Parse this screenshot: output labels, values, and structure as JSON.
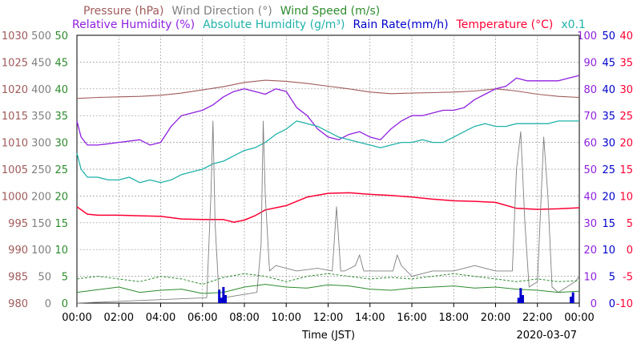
{
  "chart_data": {
    "type": "line",
    "legend": {
      "row1": [
        {
          "text": "Pressure (hPa)",
          "color": "#a05a5a"
        },
        {
          "text": "Wind Direction (°)",
          "color": "#7f7f7f"
        },
        {
          "text": "Wind Speed (m/s)",
          "color": "#2e8b2e"
        }
      ],
      "row2": [
        {
          "text": "Relative Humidity (%)",
          "color": "#8f1fdf"
        },
        {
          "text": "Absolute Humidity (g/m³)",
          "color": "#20b2aa"
        },
        {
          "text": "Rain Rate(mm/h)",
          "color": "#0000cc"
        },
        {
          "text": "Temperature (°C)",
          "color": "#ff0033"
        },
        {
          "text": "x0.1",
          "color": "#20b2aa"
        }
      ]
    },
    "x_ticks": [
      "00:00",
      "02:00",
      "04:00",
      "06:00",
      "08:00",
      "10:00",
      "12:00",
      "14:00",
      "16:00",
      "18:00",
      "20:00",
      "22:00",
      "00:00"
    ],
    "xlabel": "Time (JST)",
    "date": "2020-03-07",
    "axes": {
      "pressure": {
        "ticks": [
          "1030",
          "1025",
          "1020",
          "1015",
          "1010",
          "1005",
          "1000",
          "995",
          "990",
          "985",
          "980"
        ],
        "ylim": [
          980,
          1030
        ],
        "color": "#a05a5a"
      },
      "wind_direction": {
        "ticks": [
          "500",
          "450",
          "400",
          "350",
          "300",
          "250",
          "200",
          "150",
          "100",
          "50",
          "0"
        ],
        "ylim": [
          0,
          500
        ],
        "color": "#7f7f7f"
      },
      "wind_speed": {
        "ticks": [
          "50",
          "45",
          "40",
          "35",
          "30",
          "25",
          "20",
          "15",
          "10",
          "5",
          "0"
        ],
        "ylim": [
          0,
          50
        ],
        "color": "#2e8b2e"
      },
      "relative_humidity": {
        "ticks": [
          "100",
          "90",
          "80",
          "70",
          "60",
          "50",
          "40",
          "30",
          "20",
          "10",
          "0"
        ],
        "ylim": [
          0,
          100
        ],
        "color": "#8f1fdf"
      },
      "rain_rate": {
        "ticks": [
          "50",
          "45",
          "40",
          "35",
          "30",
          "25",
          "20",
          "15",
          "10",
          "5",
          "0"
        ],
        "ylim": [
          0,
          50
        ],
        "color": "#0000cc"
      },
      "temperature": {
        "ticks": [
          "40",
          "35",
          "30",
          "25",
          "20",
          "15",
          "10",
          "5",
          "0",
          "-5",
          "-10"
        ],
        "ylim": [
          -10,
          40
        ],
        "color": "#ff0033"
      }
    },
    "series": [
      {
        "name": "Pressure (hPa)",
        "color": "#a05a5a",
        "x": [
          0,
          1,
          2,
          3,
          4,
          5,
          6,
          7,
          8,
          9,
          10,
          11,
          12,
          13,
          14,
          15,
          16,
          17,
          18,
          19,
          20,
          21,
          22,
          23,
          24
        ],
        "y": [
          1018.2,
          1018.4,
          1018.5,
          1018.6,
          1018.8,
          1019.2,
          1019.8,
          1020.4,
          1021.2,
          1021.6,
          1021.4,
          1021,
          1020.5,
          1020,
          1019.4,
          1019.1,
          1019.2,
          1019.3,
          1019.4,
          1019.6,
          1020,
          1019.6,
          1019,
          1018.6,
          1018.4
        ]
      },
      {
        "name": "Relative Humidity (%)",
        "color": "#8f1fdf",
        "x": [
          0,
          0.2,
          0.5,
          1,
          2,
          3,
          3.5,
          4,
          4.5,
          5,
          5.5,
          6,
          6.5,
          7,
          7.5,
          8,
          8.5,
          9,
          9.5,
          10,
          10.5,
          11,
          11.5,
          12,
          12.5,
          13,
          13.5,
          14,
          14.5,
          15,
          15.5,
          16,
          16.5,
          17,
          17.5,
          18,
          18.5,
          19,
          19.5,
          20,
          20.5,
          21,
          21.5,
          22,
          22.5,
          23,
          23.5,
          24
        ],
        "y": [
          68,
          62,
          59,
          59,
          60,
          61,
          59,
          60,
          66,
          70,
          71,
          72,
          74,
          77,
          79,
          80,
          79,
          78,
          80,
          79,
          73,
          70,
          65,
          62,
          61,
          63,
          64,
          62,
          61,
          65,
          68,
          70,
          70,
          71,
          72,
          72,
          73,
          76,
          78,
          80,
          81,
          84,
          83,
          83,
          83,
          83,
          84,
          85
        ]
      },
      {
        "name": "Absolute Humidity (g/m³)",
        "color": "#20b2aa",
        "x": [
          0,
          0.2,
          0.5,
          1,
          1.5,
          2,
          2.5,
          3,
          3.5,
          4,
          4.5,
          5,
          5.5,
          6,
          6.5,
          7,
          7.5,
          8,
          8.5,
          9,
          9.5,
          10,
          10.5,
          11,
          11.5,
          12,
          12.5,
          13,
          13.5,
          14,
          14.5,
          15,
          15.5,
          16,
          16.5,
          17,
          17.5,
          18,
          18.5,
          19,
          19.5,
          20,
          20.5,
          21,
          21.5,
          22,
          22.5,
          23,
          23.5,
          24
        ],
        "y": [
          5.6,
          5.0,
          4.7,
          4.7,
          4.6,
          4.6,
          4.7,
          4.5,
          4.6,
          4.5,
          4.6,
          4.8,
          4.9,
          5.0,
          5.2,
          5.3,
          5.5,
          5.7,
          5.8,
          6.0,
          6.3,
          6.5,
          6.8,
          6.7,
          6.6,
          6.4,
          6.2,
          6.1,
          6.0,
          5.9,
          5.8,
          5.9,
          6.0,
          6.0,
          6.1,
          6.0,
          6.0,
          6.2,
          6.4,
          6.6,
          6.7,
          6.6,
          6.6,
          6.7,
          6.7,
          6.7,
          6.7,
          6.8,
          6.8,
          6.8
        ]
      },
      {
        "name": "Temperature (°C)",
        "color": "#ff0033",
        "x": [
          0,
          0.5,
          1,
          2,
          3,
          4,
          5,
          6,
          7,
          7.5,
          8,
          8.5,
          9,
          9.5,
          10,
          11,
          12,
          13,
          14,
          15,
          16,
          17,
          18,
          19,
          20,
          21,
          22,
          23,
          24
        ],
        "y": [
          8.0,
          6.6,
          6.4,
          6.4,
          6.3,
          6.2,
          5.7,
          5.6,
          5.6,
          5.1,
          5.5,
          6.3,
          7.4,
          7.8,
          8.2,
          9.8,
          10.5,
          10.6,
          10.3,
          10.1,
          9.8,
          9.4,
          9.1,
          9.0,
          8.8,
          7.7,
          7.5,
          7.6,
          7.8
        ]
      },
      {
        "name": "Wind Direction (°)",
        "color": "#7f7f7f",
        "x": [
          0,
          6.2,
          6.4,
          6.5,
          6.6,
          6.8,
          7.0,
          8.6,
          8.8,
          8.9,
          9.0,
          9.2,
          9.5,
          10.5,
          11.5,
          12.2,
          12.4,
          12.6,
          12.8,
          13.3,
          13.5,
          13.7,
          14,
          15.1,
          15.3,
          15.5,
          16,
          17,
          18,
          19,
          20,
          20.8,
          21,
          21.2,
          21.4,
          21.6,
          22,
          22.3,
          22.5,
          22.7,
          23,
          23.8,
          24
        ],
        "y": [
          0,
          10,
          200,
          340,
          150,
          5,
          10,
          20,
          110,
          340,
          200,
          60,
          70,
          60,
          65,
          60,
          180,
          60,
          60,
          70,
          90,
          60,
          60,
          60,
          90,
          70,
          50,
          60,
          60,
          70,
          60,
          60,
          250,
          320,
          150,
          30,
          40,
          310,
          200,
          30,
          20,
          40,
          50
        ]
      },
      {
        "name": "Wind Speed (m/s)",
        "color": "#2e8b2e",
        "x": [
          0,
          1,
          2,
          3,
          4,
          5,
          6,
          7,
          8,
          9,
          10,
          11,
          12,
          13,
          14,
          15,
          16,
          17,
          18,
          19,
          20,
          21,
          22,
          23,
          24
        ],
        "y": [
          2,
          2.5,
          3,
          2,
          2.4,
          2.6,
          1.8,
          2,
          3,
          3.5,
          3,
          2.8,
          3.4,
          3.2,
          2.6,
          2.4,
          2.8,
          3,
          3.2,
          2.8,
          3,
          2.6,
          2.4,
          2,
          2.2
        ]
      },
      {
        "name": "Wind Speed gust (m/s)",
        "color": "#2e8b2e",
        "x": [
          0,
          1,
          2,
          3,
          4,
          5,
          6,
          7,
          8,
          9,
          10,
          11,
          12,
          13,
          14,
          15,
          16,
          17,
          18,
          19,
          20,
          21,
          22,
          23,
          24
        ],
        "y": [
          4.5,
          5,
          4.5,
          4,
          5,
          4.5,
          3.5,
          4.8,
          5.5,
          5,
          4,
          5,
          5.5,
          5,
          4.5,
          4.8,
          4.5,
          5,
          5.5,
          5,
          4.5,
          4,
          4.5,
          4,
          4.2
        ]
      },
      {
        "name": "Rain Rate(mm/h)",
        "color": "#0000cc",
        "x": [
          6.8,
          6.9,
          7.0,
          7.1,
          21.1,
          21.2,
          21.3,
          23.6,
          23.7
        ],
        "y": [
          2.5,
          1.0,
          3.0,
          1.5,
          1.0,
          2.8,
          1.5,
          1.2,
          2.0
        ]
      }
    ]
  }
}
